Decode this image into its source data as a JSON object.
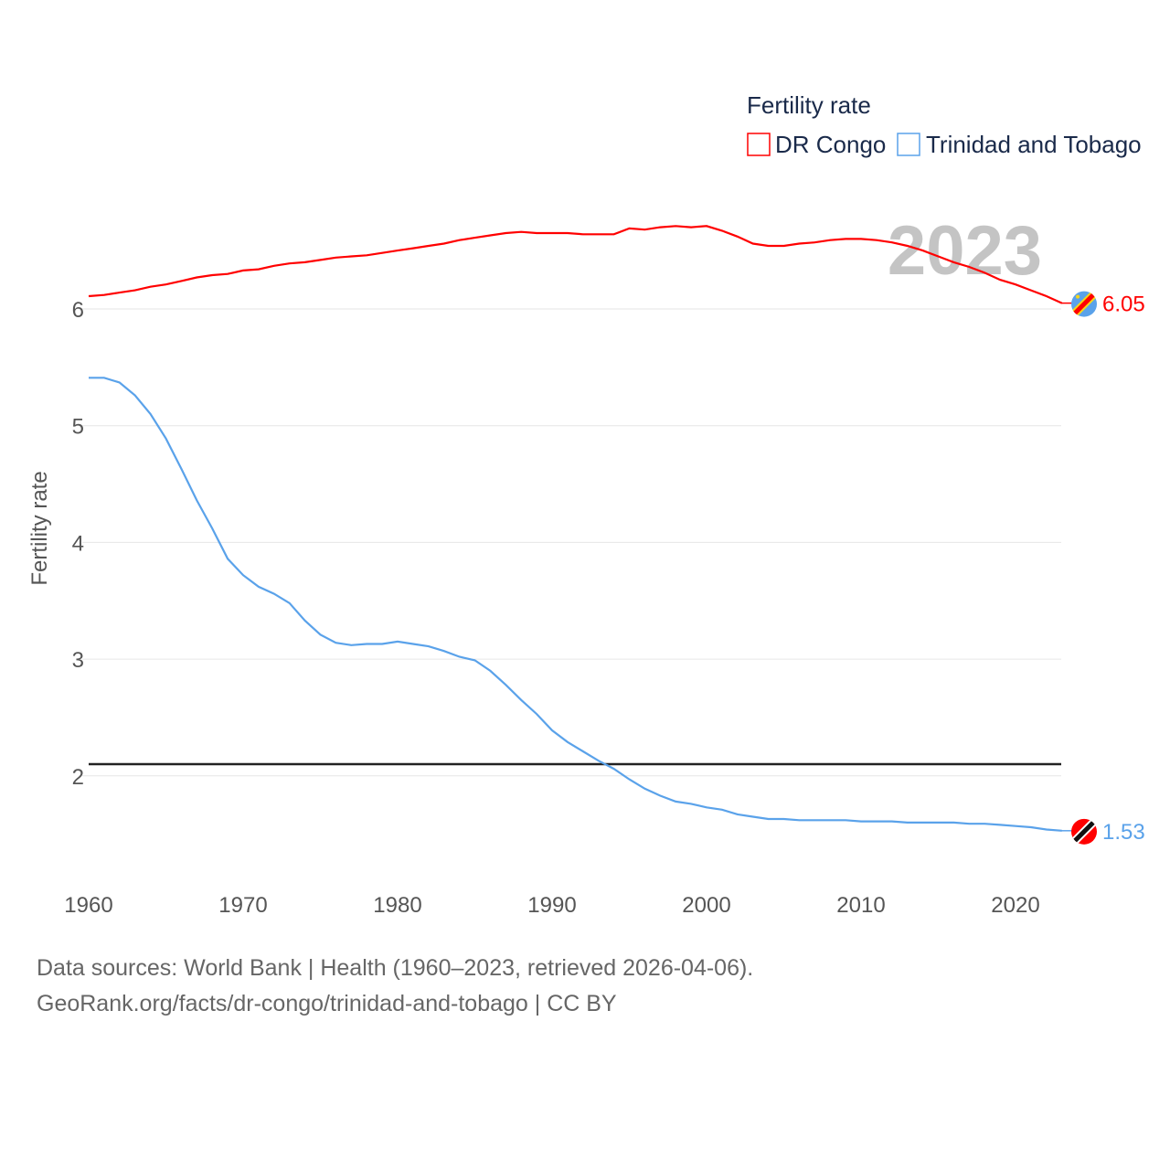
{
  "chart_data": {
    "type": "line",
    "ylabel": "Fertility rate",
    "xlabel": "",
    "year_label": "2023",
    "legend_title": "Fertility rate",
    "legend_position": "top-right",
    "xlim": [
      1960,
      2023
    ],
    "ylim": [
      1.35,
      6.9
    ],
    "x_ticks": [
      1960,
      1970,
      1980,
      1990,
      2000,
      2010,
      2020
    ],
    "y_ticks": [
      2,
      3,
      4,
      5,
      6
    ],
    "grid": true,
    "reference_line": {
      "value": 2.1,
      "color": "#222222"
    },
    "x": [
      1960,
      1961,
      1962,
      1963,
      1964,
      1965,
      1966,
      1967,
      1968,
      1969,
      1970,
      1971,
      1972,
      1973,
      1974,
      1975,
      1976,
      1977,
      1978,
      1979,
      1980,
      1981,
      1982,
      1983,
      1984,
      1985,
      1986,
      1987,
      1988,
      1989,
      1990,
      1991,
      1992,
      1993,
      1994,
      1995,
      1996,
      1997,
      1998,
      1999,
      2000,
      2001,
      2002,
      2003,
      2004,
      2005,
      2006,
      2007,
      2008,
      2009,
      2010,
      2011,
      2012,
      2013,
      2014,
      2015,
      2016,
      2017,
      2018,
      2019,
      2020,
      2021,
      2022,
      2023
    ],
    "series": [
      {
        "name": "DR Congo",
        "color": "#ff0000",
        "end_label": "6.05",
        "values": [
          6.11,
          6.12,
          6.14,
          6.16,
          6.19,
          6.21,
          6.24,
          6.27,
          6.29,
          6.3,
          6.33,
          6.34,
          6.37,
          6.39,
          6.4,
          6.42,
          6.44,
          6.45,
          6.46,
          6.48,
          6.5,
          6.52,
          6.54,
          6.56,
          6.59,
          6.61,
          6.63,
          6.65,
          6.66,
          6.65,
          6.65,
          6.65,
          6.64,
          6.64,
          6.64,
          6.69,
          6.68,
          6.7,
          6.71,
          6.7,
          6.71,
          6.67,
          6.62,
          6.56,
          6.54,
          6.54,
          6.56,
          6.57,
          6.59,
          6.6,
          6.6,
          6.59,
          6.57,
          6.54,
          6.5,
          6.45,
          6.4,
          6.36,
          6.31,
          6.25,
          6.21,
          6.16,
          6.11,
          6.05
        ]
      },
      {
        "name": "Trinidad and Tobago",
        "color": "#5aa2ea",
        "end_label": "1.53",
        "values": [
          5.41,
          5.41,
          5.37,
          5.26,
          5.1,
          4.89,
          4.63,
          4.36,
          4.12,
          3.86,
          3.72,
          3.62,
          3.56,
          3.48,
          3.33,
          3.21,
          3.14,
          3.12,
          3.13,
          3.13,
          3.15,
          3.13,
          3.11,
          3.07,
          3.02,
          2.99,
          2.9,
          2.78,
          2.65,
          2.53,
          2.39,
          2.29,
          2.21,
          2.13,
          2.06,
          1.97,
          1.89,
          1.83,
          1.78,
          1.76,
          1.73,
          1.71,
          1.67,
          1.65,
          1.63,
          1.63,
          1.62,
          1.62,
          1.62,
          1.62,
          1.61,
          1.61,
          1.61,
          1.6,
          1.6,
          1.6,
          1.6,
          1.59,
          1.59,
          1.58,
          1.57,
          1.56,
          1.54,
          1.53
        ]
      }
    ]
  },
  "footer": {
    "line1": "Data sources: World Bank | Health (1960–2023, retrieved 2026-04-06).",
    "line2": "GeoRank.org/facts/dr-congo/trinidad-and-tobago | CC BY"
  }
}
